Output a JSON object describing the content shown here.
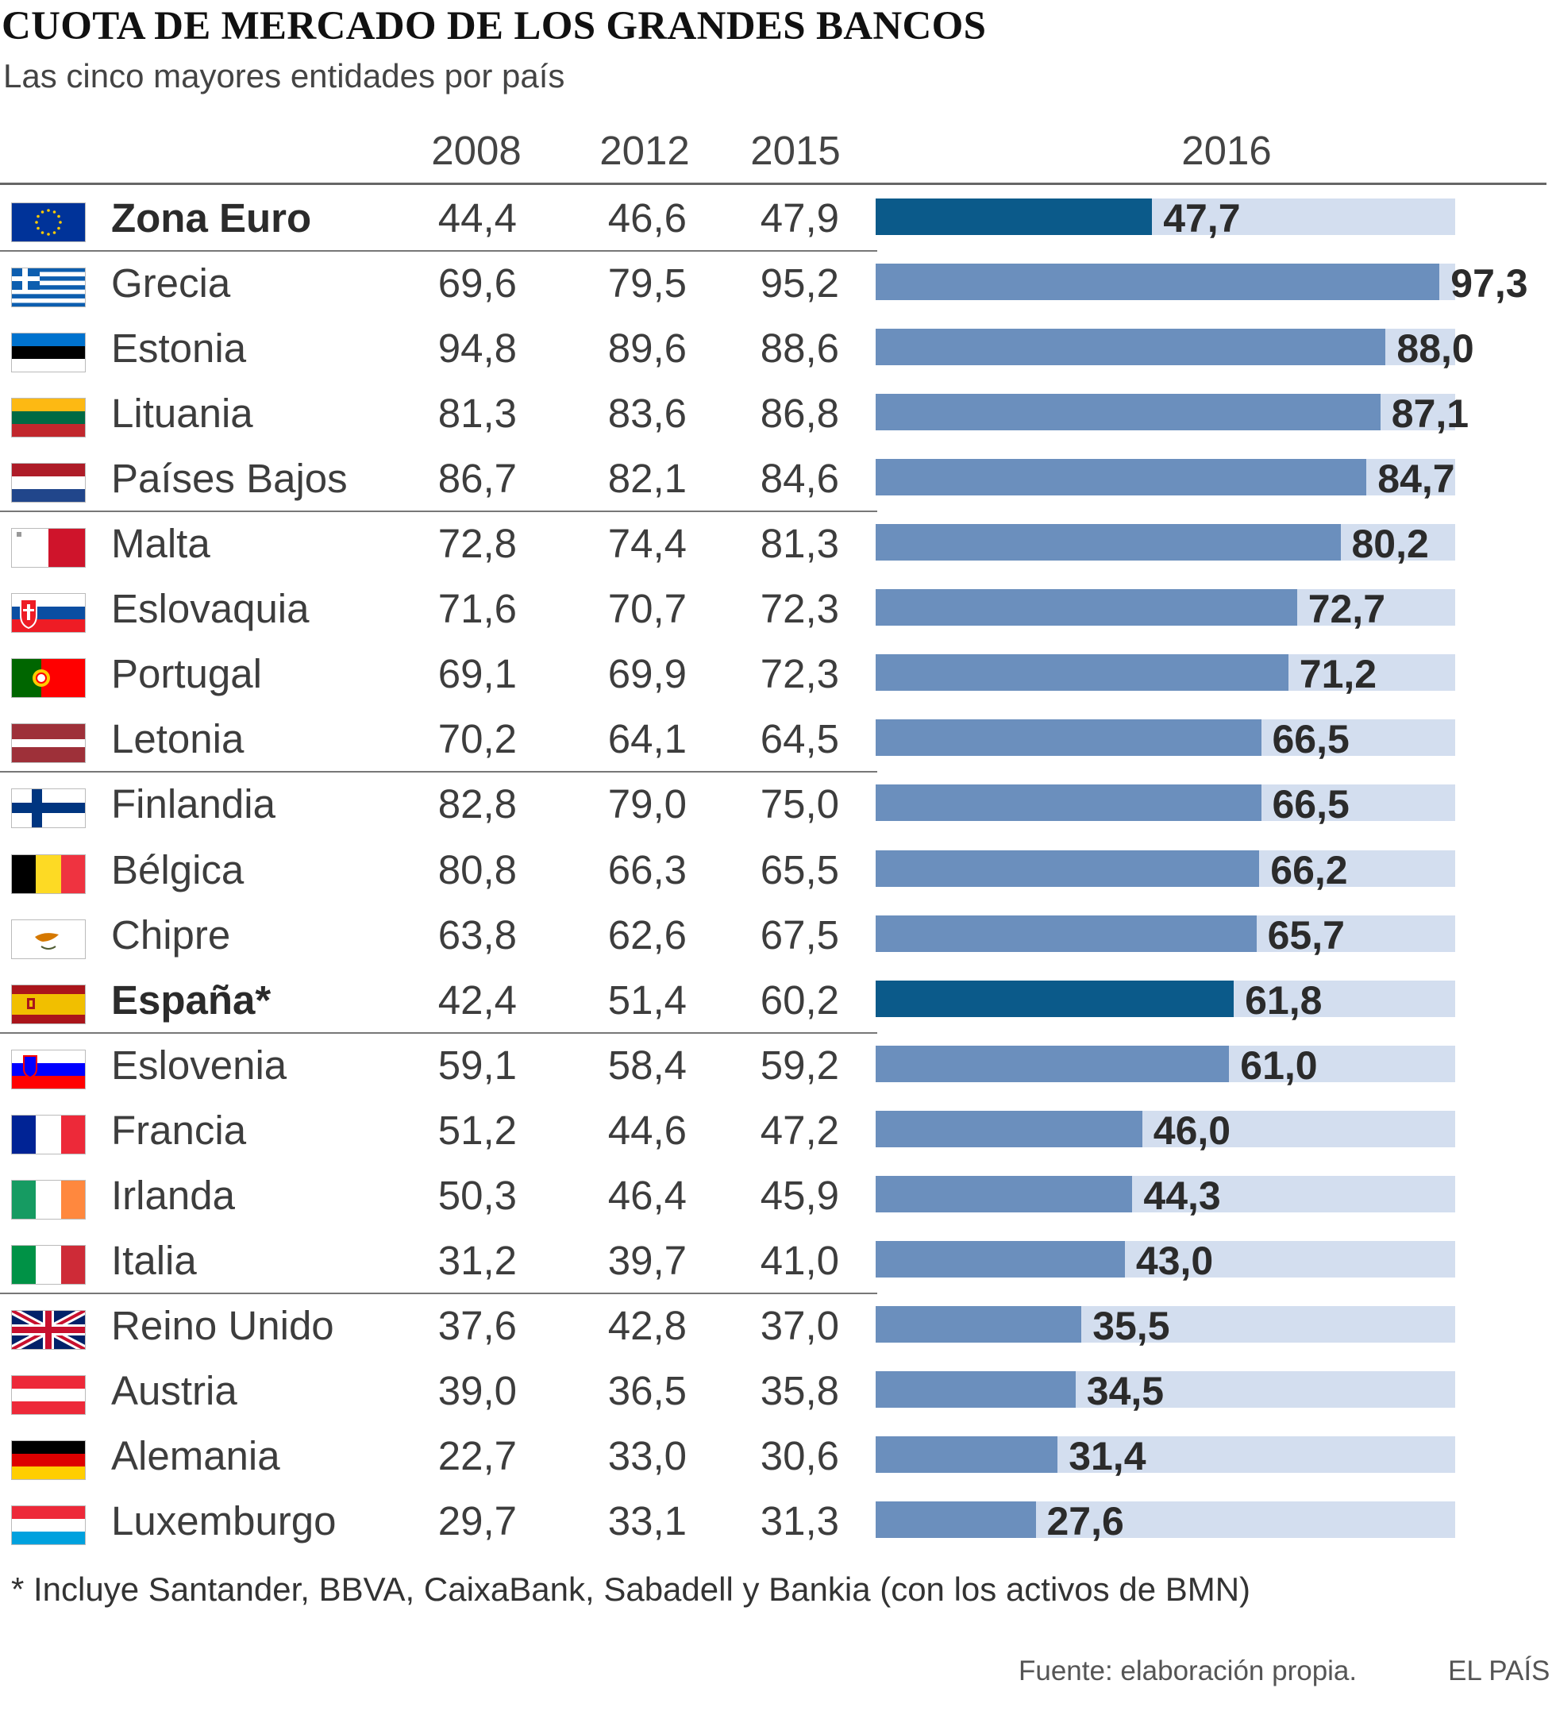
{
  "title": "CUOTA DE MERCADO DE LOS GRANDES BANCOS",
  "subtitle": "Las cinco mayores entidades por país",
  "columns": [
    "2008",
    "2012",
    "2015",
    "2016"
  ],
  "footnote": "* Incluye Santander, BBVA, CaixaBank, Sabadell y Bankia (con los activos de BMN)",
  "source": "Fuente: elaboración propia.",
  "brand": "EL PAÍS",
  "colors": {
    "bar": "#6b8fbd",
    "bar_highlight": "#0b5a8a",
    "track": "#d3deef"
  },
  "chart_data": {
    "type": "table",
    "title": "CUOTA DE MERCADO DE LOS GRANDES BANCOS",
    "subtitle": "Las cinco mayores entidades por país",
    "bar_column": "2016",
    "xlim": [
      0,
      100
    ],
    "rows": [
      {
        "country": "Zona Euro",
        "flag": "eu-flag",
        "bold": true,
        "group_end": true,
        "v2008": "44,4",
        "v2012": "46,6",
        "v2015": "47,9",
        "v2016": 47.7,
        "label2016": "47,7"
      },
      {
        "country": "Grecia",
        "flag": "greece-flag",
        "v2008": "69,6",
        "v2012": "79,5",
        "v2015": "95,2",
        "v2016": 97.3,
        "label2016": "97,3"
      },
      {
        "country": "Estonia",
        "flag": "estonia-flag",
        "v2008": "94,8",
        "v2012": "89,6",
        "v2015": "88,6",
        "v2016": 88.0,
        "label2016": "88,0"
      },
      {
        "country": "Lituania",
        "flag": "lithuania-flag",
        "v2008": "81,3",
        "v2012": "83,6",
        "v2015": "86,8",
        "v2016": 87.1,
        "label2016": "87,1"
      },
      {
        "country": "Países Bajos",
        "flag": "netherlands-flag",
        "group_end": true,
        "v2008": "86,7",
        "v2012": "82,1",
        "v2015": "84,6",
        "v2016": 84.7,
        "label2016": "84,7"
      },
      {
        "country": "Malta",
        "flag": "malta-flag",
        "v2008": "72,8",
        "v2012": "74,4",
        "v2015": "81,3",
        "v2016": 80.2,
        "label2016": "80,2"
      },
      {
        "country": "Eslovaquia",
        "flag": "slovakia-flag",
        "v2008": "71,6",
        "v2012": "70,7",
        "v2015": "72,3",
        "v2016": 72.7,
        "label2016": "72,7"
      },
      {
        "country": "Portugal",
        "flag": "portugal-flag",
        "v2008": "69,1",
        "v2012": "69,9",
        "v2015": "72,3",
        "v2016": 71.2,
        "label2016": "71,2"
      },
      {
        "country": "Letonia",
        "flag": "latvia-flag",
        "group_end": true,
        "v2008": "70,2",
        "v2012": "64,1",
        "v2015": "64,5",
        "v2016": 66.5,
        "label2016": "66,5"
      },
      {
        "country": "Finlandia",
        "flag": "finland-flag",
        "v2008": "82,8",
        "v2012": "79,0",
        "v2015": "75,0",
        "v2016": 66.5,
        "label2016": "66,5"
      },
      {
        "country": "Bélgica",
        "flag": "belgium-flag",
        "v2008": "80,8",
        "v2012": "66,3",
        "v2015": "65,5",
        "v2016": 66.2,
        "label2016": "66,2"
      },
      {
        "country": "Chipre",
        "flag": "cyprus-flag",
        "v2008": "63,8",
        "v2012": "62,6",
        "v2015": "67,5",
        "v2016": 65.7,
        "label2016": "65,7"
      },
      {
        "country": "España*",
        "flag": "spain-flag",
        "bold": true,
        "group_end": true,
        "v2008": "42,4",
        "v2012": "51,4",
        "v2015": "60,2",
        "v2016": 61.8,
        "label2016": "61,8"
      },
      {
        "country": "Eslovenia",
        "flag": "slovenia-flag",
        "v2008": "59,1",
        "v2012": "58,4",
        "v2015": "59,2",
        "v2016": 61.0,
        "label2016": "61,0"
      },
      {
        "country": "Francia",
        "flag": "france-flag",
        "v2008": "51,2",
        "v2012": "44,6",
        "v2015": "47,2",
        "v2016": 46.0,
        "label2016": "46,0"
      },
      {
        "country": "Irlanda",
        "flag": "ireland-flag",
        "v2008": "50,3",
        "v2012": "46,4",
        "v2015": "45,9",
        "v2016": 44.3,
        "label2016": "44,3"
      },
      {
        "country": "Italia",
        "flag": "italy-flag",
        "group_end": true,
        "v2008": "31,2",
        "v2012": "39,7",
        "v2015": "41,0",
        "v2016": 43.0,
        "label2016": "43,0"
      },
      {
        "country": "Reino Unido",
        "flag": "uk-flag",
        "v2008": "37,6",
        "v2012": "42,8",
        "v2015": "37,0",
        "v2016": 35.5,
        "label2016": "35,5"
      },
      {
        "country": "Austria",
        "flag": "austria-flag",
        "v2008": "39,0",
        "v2012": "36,5",
        "v2015": "35,8",
        "v2016": 34.5,
        "label2016": "34,5"
      },
      {
        "country": "Alemania",
        "flag": "germany-flag",
        "v2008": "22,7",
        "v2012": "33,0",
        "v2015": "30,6",
        "v2016": 31.4,
        "label2016": "31,4"
      },
      {
        "country": "Luxemburgo",
        "flag": "luxembourg-flag",
        "v2008": "29,7",
        "v2012": "33,1",
        "v2015": "31,3",
        "v2016": 27.6,
        "label2016": "27,6"
      }
    ]
  }
}
